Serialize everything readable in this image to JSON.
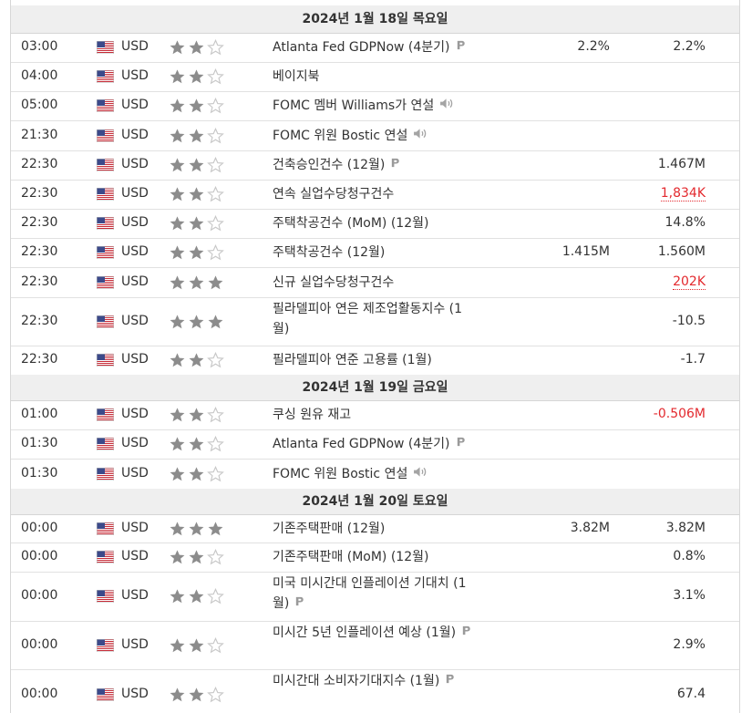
{
  "colors": {
    "accent_red": "#e3292e",
    "star_filled": "#8c8c8c",
    "star_empty": "#c8c8c8",
    "date_bg": "#efefef"
  },
  "icons": {
    "flag": "us-flag-icon",
    "preliminary": "preliminary-p-icon",
    "speech": "speaker-icon"
  },
  "date_headers": [
    "2024년 1월 18일 목요일",
    "2024년 1월 19일 금요일",
    "2024년 1월 20일 토요일"
  ],
  "events": [
    {
      "time": "03:00",
      "currency": "USD",
      "importance": 2,
      "name": "Atlanta Fed GDPNow (4분기)",
      "icon": "preliminary",
      "forecast": "2.2%",
      "previous": "2.2%"
    },
    {
      "time": "04:00",
      "currency": "USD",
      "importance": 2,
      "name": "베이지북",
      "icon": "",
      "forecast": "",
      "previous": ""
    },
    {
      "time": "05:00",
      "currency": "USD",
      "importance": 2,
      "name": "FOMC 멤버 Williams가 연설",
      "icon": "speech",
      "forecast": "",
      "previous": ""
    },
    {
      "time": "21:30",
      "currency": "USD",
      "importance": 2,
      "name": "FOMC 위원 Bostic 연설",
      "icon": "speech",
      "forecast": "",
      "previous": ""
    },
    {
      "time": "22:30",
      "currency": "USD",
      "importance": 2,
      "name": "건축승인건수 (12월)",
      "icon": "preliminary",
      "forecast": "",
      "previous": "1.467M"
    },
    {
      "time": "22:30",
      "currency": "USD",
      "importance": 2,
      "name": "연속 실업수당청구건수",
      "icon": "",
      "forecast": "",
      "previous": "1,834K",
      "previous_revised": true
    },
    {
      "time": "22:30",
      "currency": "USD",
      "importance": 2,
      "name": "주택착공건수 (MoM) (12월)",
      "icon": "",
      "forecast": "",
      "previous": "14.8%"
    },
    {
      "time": "22:30",
      "currency": "USD",
      "importance": 2,
      "name": "주택착공건수 (12월)",
      "icon": "",
      "forecast": "1.415M",
      "previous": "1.560M"
    },
    {
      "time": "22:30",
      "currency": "USD",
      "importance": 3,
      "name": "신규 실업수당청구건수",
      "icon": "",
      "forecast": "",
      "previous": "202K",
      "previous_revised": true
    },
    {
      "time": "22:30",
      "currency": "USD",
      "importance": 3,
      "name": "필라델피아 연은 제조업활동지수 (1월)",
      "icon": "",
      "forecast": "",
      "previous": "-10.5"
    },
    {
      "time": "22:30",
      "currency": "USD",
      "importance": 2,
      "name": "필라델피아 연준 고용률 (1월)",
      "icon": "",
      "forecast": "",
      "previous": "-1.7"
    },
    {
      "time": "01:00",
      "currency": "USD",
      "importance": 2,
      "name": "쿠싱 원유 재고",
      "icon": "",
      "forecast": "",
      "previous": "-0.506M",
      "previous_negative": true
    },
    {
      "time": "01:30",
      "currency": "USD",
      "importance": 2,
      "name": "Atlanta Fed GDPNow (4분기)",
      "icon": "preliminary",
      "forecast": "",
      "previous": ""
    },
    {
      "time": "01:30",
      "currency": "USD",
      "importance": 2,
      "name": "FOMC 위원 Bostic 연설",
      "icon": "speech",
      "forecast": "",
      "previous": ""
    },
    {
      "time": "00:00",
      "currency": "USD",
      "importance": 3,
      "name": "기존주택판매 (12월)",
      "icon": "",
      "forecast": "3.82M",
      "previous": "3.82M"
    },
    {
      "time": "00:00",
      "currency": "USD",
      "importance": 2,
      "name": "기존주택판매 (MoM) (12월)",
      "icon": "",
      "forecast": "",
      "previous": "0.8%"
    },
    {
      "time": "00:00",
      "currency": "USD",
      "importance": 2,
      "name": "미국 미시간대 인플레이션 기대치 (1월)",
      "icon": "preliminary",
      "forecast": "",
      "previous": "3.1%"
    },
    {
      "time": "00:00",
      "currency": "USD",
      "importance": 2,
      "name": "미시간 5년 인플레이션 예상 (1월)",
      "icon": "preliminary",
      "forecast": "",
      "previous": "2.9%"
    },
    {
      "time": "00:00",
      "currency": "USD",
      "importance": 2,
      "name": "미시간대 소비자기대지수 (1월)",
      "icon": "preliminary",
      "forecast": "",
      "previous": "67.4"
    }
  ]
}
